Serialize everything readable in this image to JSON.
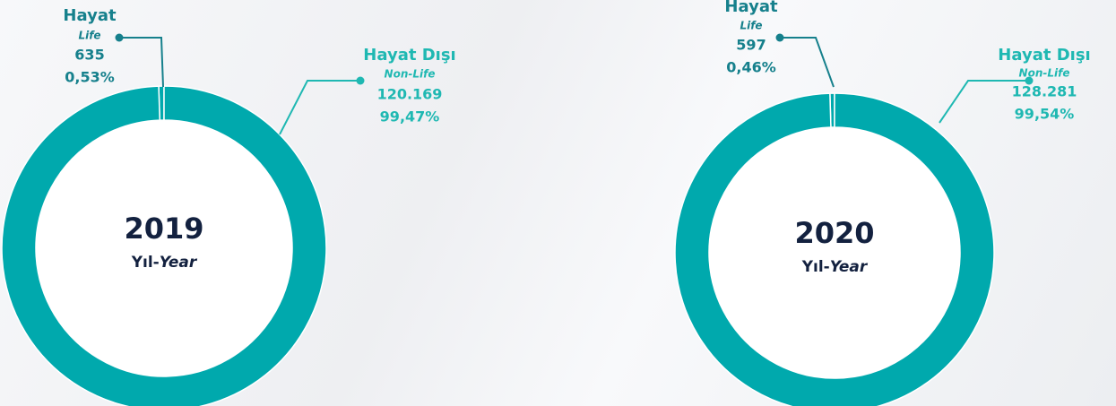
{
  "chart_data": [
    {
      "type": "donut",
      "center_label": "2019",
      "center_sub": "Yıl-",
      "center_sub_en": "Year",
      "categories": [
        "Hayat",
        "Hayat Dışı"
      ],
      "subcategories": [
        "Life",
        "Non-Life"
      ],
      "values": [
        635,
        120169
      ],
      "value_labels": [
        "635",
        "120.169"
      ],
      "percents": [
        0.53,
        99.47
      ],
      "percent_labels": [
        "0,53%",
        "99,47%"
      ],
      "color": "#00a9ad",
      "label_colors": [
        "#16808c",
        "#1fb8b2"
      ]
    },
    {
      "type": "donut",
      "center_label": "2020",
      "center_sub": "Yıl-",
      "center_sub_en": "Year",
      "categories": [
        "Hayat",
        "Hayat Dışı"
      ],
      "subcategories": [
        "Life",
        "Non-Life"
      ],
      "values": [
        597,
        128281
      ],
      "value_labels": [
        "597",
        "128.281"
      ],
      "percents": [
        0.46,
        99.54
      ],
      "percent_labels": [
        "0,46%",
        "99,54%"
      ],
      "color": "#00a9ad",
      "label_colors": [
        "#16808c",
        "#1fb8b2"
      ]
    }
  ]
}
